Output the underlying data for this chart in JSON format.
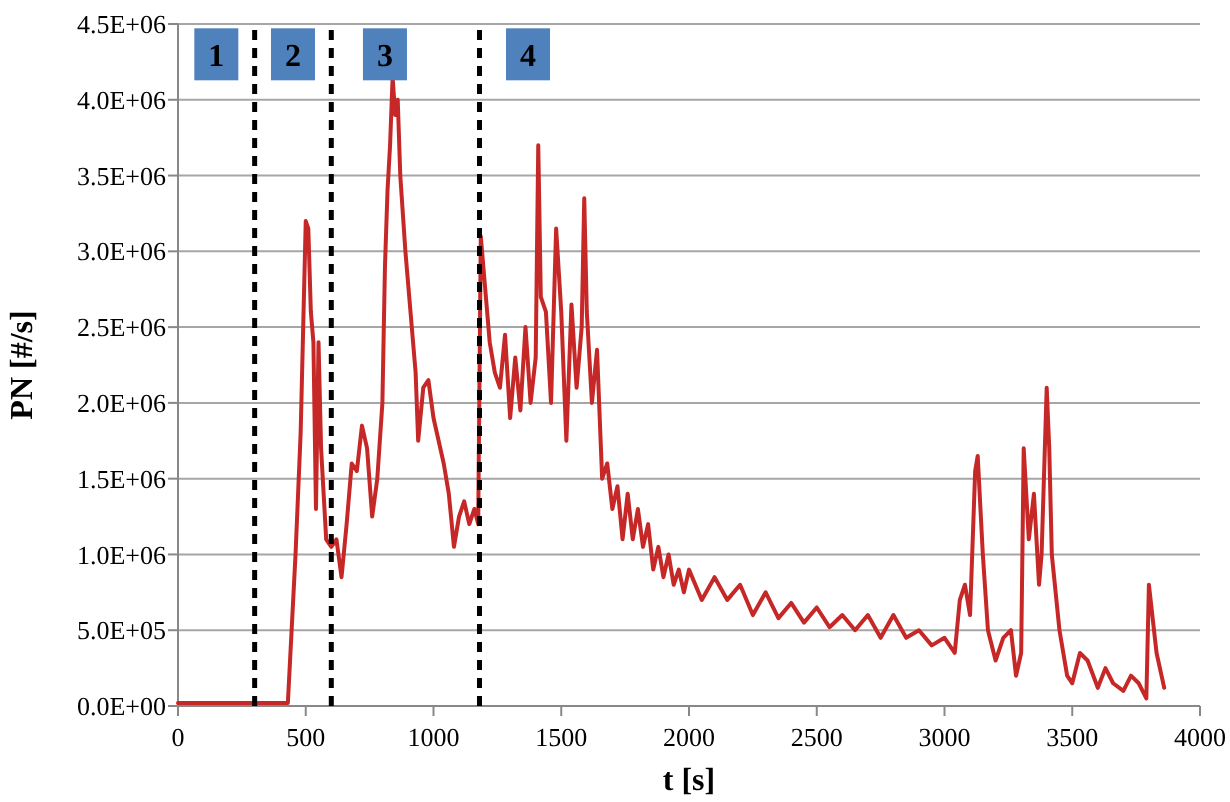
{
  "chart_data": {
    "type": "line",
    "xlabel": "t [s]",
    "ylabel": "PN [#/s]",
    "xlim": [
      0,
      4000
    ],
    "xticks": [
      0,
      500,
      1000,
      1500,
      2000,
      2500,
      3000,
      3500,
      4000
    ],
    "ylim": [
      0,
      4500000
    ],
    "yticks": [
      {
        "value": 0,
        "label": "0.0E+00"
      },
      {
        "value": 500000,
        "label": "5.0E+05"
      },
      {
        "value": 1000000,
        "label": "1.0E+06"
      },
      {
        "value": 1500000,
        "label": "1.5E+06"
      },
      {
        "value": 2000000,
        "label": "2.0E+06"
      },
      {
        "value": 2500000,
        "label": "2.5E+06"
      },
      {
        "value": 3000000,
        "label": "3.0E+06"
      },
      {
        "value": 3500000,
        "label": "3.5E+06"
      },
      {
        "value": 4000000,
        "label": "4.0E+06"
      },
      {
        "value": 4500000,
        "label": "4.5E+06"
      }
    ],
    "grid": "y",
    "marker": "none",
    "line_style": "solid",
    "series": [
      {
        "color": "#c62828",
        "x": [
          0,
          200,
          430,
          460,
          480,
          490,
          500,
          510,
          520,
          530,
          540,
          550,
          560,
          580,
          600,
          620,
          640,
          660,
          680,
          700,
          720,
          740,
          760,
          780,
          800,
          810,
          820,
          830,
          840,
          850,
          860,
          870,
          890,
          910,
          930,
          940,
          960,
          980,
          1000,
          1020,
          1040,
          1060,
          1080,
          1100,
          1120,
          1140,
          1160,
          1175,
          1185,
          1200,
          1220,
          1240,
          1260,
          1280,
          1300,
          1320,
          1340,
          1360,
          1380,
          1400,
          1410,
          1420,
          1440,
          1460,
          1480,
          1500,
          1520,
          1540,
          1560,
          1580,
          1590,
          1600,
          1620,
          1640,
          1660,
          1680,
          1700,
          1720,
          1740,
          1760,
          1780,
          1800,
          1820,
          1840,
          1860,
          1880,
          1900,
          1920,
          1940,
          1960,
          1980,
          2000,
          2050,
          2100,
          2150,
          2200,
          2250,
          2300,
          2350,
          2400,
          2450,
          2500,
          2550,
          2600,
          2650,
          2700,
          2750,
          2800,
          2850,
          2900,
          2950,
          3000,
          3040,
          3060,
          3080,
          3100,
          3120,
          3130,
          3150,
          3170,
          3200,
          3230,
          3260,
          3280,
          3300,
          3310,
          3330,
          3350,
          3370,
          3380,
          3400,
          3410,
          3420,
          3450,
          3480,
          3500,
          3530,
          3560,
          3600,
          3630,
          3660,
          3700,
          3730,
          3760,
          3790,
          3800,
          3830,
          3860
        ],
        "values": [
          20000,
          20000,
          20000,
          1000000,
          1800000,
          2500000,
          3200000,
          3150000,
          2600000,
          2400000,
          1300000,
          2400000,
          1700000,
          1100000,
          1050000,
          1100000,
          850000,
          1200000,
          1600000,
          1550000,
          1850000,
          1700000,
          1250000,
          1500000,
          2000000,
          2900000,
          3400000,
          3700000,
          4150000,
          3900000,
          4000000,
          3500000,
          3000000,
          2600000,
          2200000,
          1750000,
          2100000,
          2150000,
          1900000,
          1750000,
          1600000,
          1400000,
          1050000,
          1250000,
          1350000,
          1200000,
          1300000,
          1200000,
          3100000,
          2800000,
          2400000,
          2200000,
          2100000,
          2450000,
          1900000,
          2300000,
          1950000,
          2500000,
          2000000,
          2300000,
          3700000,
          2700000,
          2600000,
          2000000,
          3150000,
          2600000,
          1750000,
          2650000,
          2100000,
          2500000,
          3350000,
          2600000,
          2000000,
          2350000,
          1500000,
          1600000,
          1300000,
          1450000,
          1100000,
          1400000,
          1100000,
          1300000,
          1050000,
          1200000,
          900000,
          1050000,
          850000,
          1000000,
          800000,
          900000,
          750000,
          900000,
          700000,
          850000,
          700000,
          800000,
          600000,
          750000,
          580000,
          680000,
          550000,
          650000,
          520000,
          600000,
          500000,
          600000,
          450000,
          600000,
          450000,
          500000,
          400000,
          450000,
          350000,
          700000,
          800000,
          600000,
          1550000,
          1650000,
          1000000,
          500000,
          300000,
          450000,
          500000,
          200000,
          350000,
          1700000,
          1100000,
          1400000,
          800000,
          1000000,
          2100000,
          1700000,
          1000000,
          500000,
          200000,
          150000,
          350000,
          300000,
          120000,
          250000,
          150000,
          100000,
          200000,
          150000,
          50000,
          800000,
          350000,
          120000
        ]
      }
    ],
    "ref_lines": [
      {
        "axis": "x",
        "value": 300,
        "color": "#000000",
        "line_style": "dashed"
      },
      {
        "axis": "x",
        "value": 600,
        "color": "#000000",
        "line_style": "dashed"
      },
      {
        "axis": "x",
        "value": 1180,
        "color": "#000000",
        "line_style": "dashed"
      }
    ],
    "annotations": [
      {
        "text": "1",
        "x": 150,
        "y": 4300000
      },
      {
        "text": "2",
        "x": 450,
        "y": 4300000
      },
      {
        "text": "3",
        "x": 810,
        "y": 4300000
      },
      {
        "text": "4",
        "x": 1370,
        "y": 4300000
      }
    ]
  }
}
